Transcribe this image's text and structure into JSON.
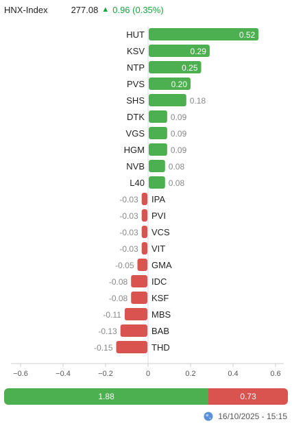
{
  "header": {
    "index_name": "HNX-Index",
    "price": "277.08",
    "change": "0.96 (0.35%)",
    "direction_icon": "up-triangle-icon"
  },
  "colors": {
    "positive": "#4caf50",
    "negative": "#d9534f",
    "up_text": "#19a33c"
  },
  "chart_data": {
    "type": "bar",
    "orientation": "horizontal",
    "categories": [
      "HUT",
      "KSV",
      "NTP",
      "PVS",
      "SHS",
      "DTK",
      "VGS",
      "HGM",
      "NVB",
      "L40",
      "IPA",
      "PVI",
      "VCS",
      "VIT",
      "GMA",
      "IDC",
      "KSF",
      "MBS",
      "BAB",
      "THD"
    ],
    "values": [
      0.52,
      0.29,
      0.25,
      0.2,
      0.18,
      0.09,
      0.09,
      0.09,
      0.08,
      0.08,
      -0.03,
      -0.03,
      -0.03,
      -0.03,
      -0.05,
      -0.08,
      -0.08,
      -0.11,
      -0.13,
      -0.15
    ],
    "value_labels": [
      "0.52",
      "0.29",
      "0.25",
      "0.20",
      "0.18",
      "0.09",
      "0.09",
      "0.09",
      "0.08",
      "0.08",
      "-0.03",
      "-0.03",
      "-0.03",
      "-0.03",
      "-0.05",
      "-0.08",
      "-0.08",
      "-0.11",
      "-0.13",
      "-0.15"
    ],
    "xlim": [
      -0.6,
      0.6
    ],
    "xticks": [
      -0.6,
      -0.4,
      -0.2,
      0,
      0.2,
      0.4,
      0.6
    ],
    "xtick_labels": [
      "−0.6",
      "−0.4",
      "−0.2",
      "0",
      "0.2",
      "0.4",
      "0.6"
    ],
    "grid": false,
    "legend": "none"
  },
  "summary": {
    "positive_total": 1.88,
    "negative_total": 0.73,
    "positive_label": "1.88",
    "negative_label": "0.73"
  },
  "footer": {
    "timestamp": "16/10/2025 - 15:15",
    "icon": "globe-icon"
  }
}
